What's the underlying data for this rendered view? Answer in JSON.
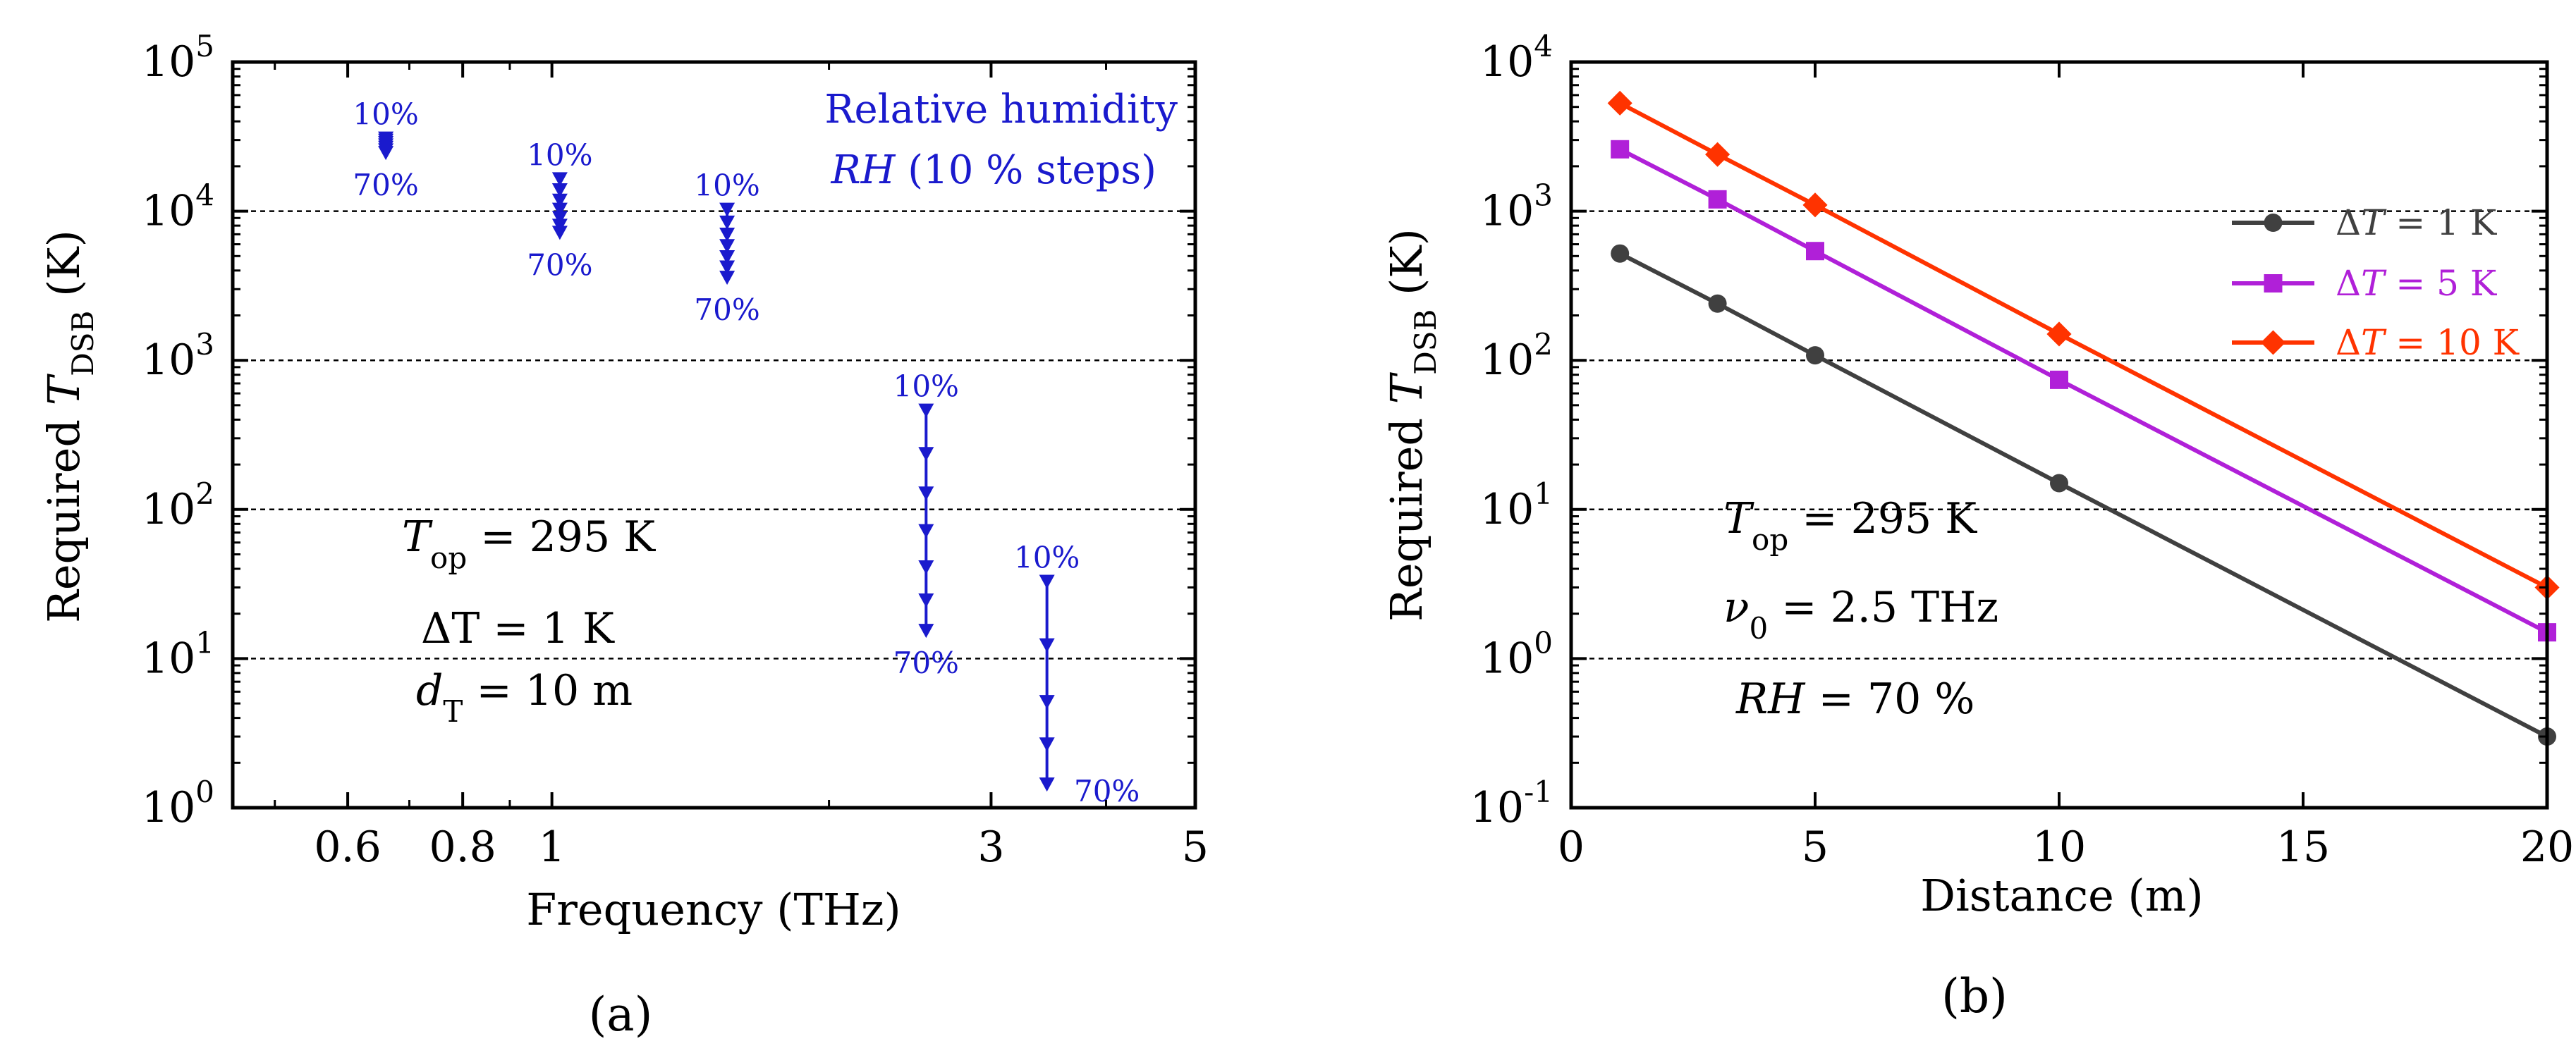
{
  "chart_data": [
    {
      "panel": "(a)",
      "panel_label": "(a)",
      "type": "scatter",
      "xscale": "log",
      "yscale": "log",
      "xlabel": "Frequency (THz)",
      "ylabel": {
        "prefix": "Required ",
        "T": "T",
        "sub": "DSB",
        "suffix": " (K)"
      },
      "xlim": [
        0.45,
        5
      ],
      "ylim": [
        1,
        100000
      ],
      "xticks": [
        {
          "v": 0.6,
          "label": "0.6"
        },
        {
          "v": 0.8,
          "label": "0.8"
        },
        {
          "v": 1,
          "label": "1"
        },
        {
          "v": 3,
          "label": "3"
        },
        {
          "v": 5,
          "label": "5"
        }
      ],
      "xminor": [
        0.5,
        0.7,
        0.9,
        2,
        4
      ],
      "yticks": [
        {
          "v": 1,
          "exp": "0"
        },
        {
          "v": 10,
          "exp": "1"
        },
        {
          "v": 100,
          "exp": "2"
        },
        {
          "v": 1000,
          "exp": "3"
        },
        {
          "v": 10000,
          "exp": "4"
        },
        {
          "v": 100000,
          "exp": "5"
        }
      ],
      "ytick_base": "10",
      "gridlines_y": [
        10,
        100,
        1000,
        10000
      ],
      "color": "#1a1acd",
      "series": [
        {
          "frequency": 0.66,
          "values": [
            30000,
            29000,
            28000,
            27000,
            26000,
            25000,
            24000
          ],
          "top_label": "10%",
          "bottom_label": "70%"
        },
        {
          "frequency": 1.02,
          "values": [
            16000,
            13500,
            11500,
            10000,
            8800,
            7800,
            7000
          ],
          "top_label": "10%",
          "bottom_label": "70%"
        },
        {
          "frequency": 1.55,
          "values": [
            10000,
            8200,
            6800,
            5700,
            4800,
            4100,
            3500
          ],
          "top_label": "10%",
          "bottom_label": "70%"
        },
        {
          "frequency": 2.55,
          "values": [
            450,
            230,
            125,
            70,
            40,
            24,
            15
          ],
          "top_label": "10%",
          "bottom_label": "70%"
        },
        {
          "frequency": 3.45,
          "values": [
            32,
            12,
            5,
            2.6,
            1.4
          ],
          "top_label": "10%",
          "bottom_label": "70%"
        }
      ],
      "legend": {
        "line1": "Relative humidity",
        "line2_italic": "RH",
        "line2_rest": " (10 % steps)"
      },
      "annotations": {
        "t_op": {
          "sym": "T",
          "sub": "op",
          "rest": " = 295 K"
        },
        "delta_t": {
          "text": "ΔT = 1 K"
        },
        "d_t": {
          "sym": "d",
          "sub": "T",
          "rest": " = 10 m"
        }
      }
    },
    {
      "panel": "(b)",
      "panel_label": "(b)",
      "type": "line",
      "xscale": "linear",
      "yscale": "log",
      "xlabel": "Distance (m)",
      "ylabel": {
        "prefix": "Required ",
        "T": "T",
        "sub": "DSB",
        "suffix": " (K)"
      },
      "xlim": [
        0,
        20
      ],
      "ylim": [
        0.1,
        10000
      ],
      "xticks": [
        {
          "v": 0,
          "label": "0"
        },
        {
          "v": 5,
          "label": "5"
        },
        {
          "v": 10,
          "label": "10"
        },
        {
          "v": 15,
          "label": "15"
        },
        {
          "v": 20,
          "label": "20"
        }
      ],
      "yticks": [
        {
          "v": 0.1,
          "exp": "-1"
        },
        {
          "v": 1,
          "exp": "0"
        },
        {
          "v": 10,
          "exp": "1"
        },
        {
          "v": 100,
          "exp": "2"
        },
        {
          "v": 1000,
          "exp": "3"
        },
        {
          "v": 10000,
          "exp": "4"
        }
      ],
      "ytick_base": "10",
      "gridlines_y": [
        1,
        10,
        100,
        1000
      ],
      "x": [
        1,
        3,
        5,
        10,
        20
      ],
      "series": [
        {
          "name": "ΔT = 1 K",
          "legend_pre": "Δ",
          "legend_sym": "T",
          "legend_rest": " = 1 K",
          "color": "#404040",
          "marker": "circle",
          "values": [
            520,
            240,
            108,
            15,
            0.3
          ]
        },
        {
          "name": "ΔT = 5 K",
          "legend_pre": "Δ",
          "legend_sym": "T",
          "legend_rest": " = 5 K",
          "color": "#b020d8",
          "marker": "square",
          "values": [
            2600,
            1200,
            540,
            74,
            1.5
          ]
        },
        {
          "name": "ΔT = 10 K",
          "legend_pre": "Δ",
          "legend_sym": "T",
          "legend_rest": " = 10 K",
          "color": "#ff3300",
          "marker": "diamond",
          "values": [
            5300,
            2400,
            1100,
            150,
            3
          ]
        }
      ],
      "annotations": {
        "t_op": {
          "sym": "T",
          "sub": "op",
          "rest": " = 295 K"
        },
        "nu0": {
          "sym": "ν",
          "sub": "0",
          "rest": " = 2.5 THz"
        },
        "rh": {
          "sym": "RH",
          "rest": " = 70 %"
        }
      }
    }
  ]
}
